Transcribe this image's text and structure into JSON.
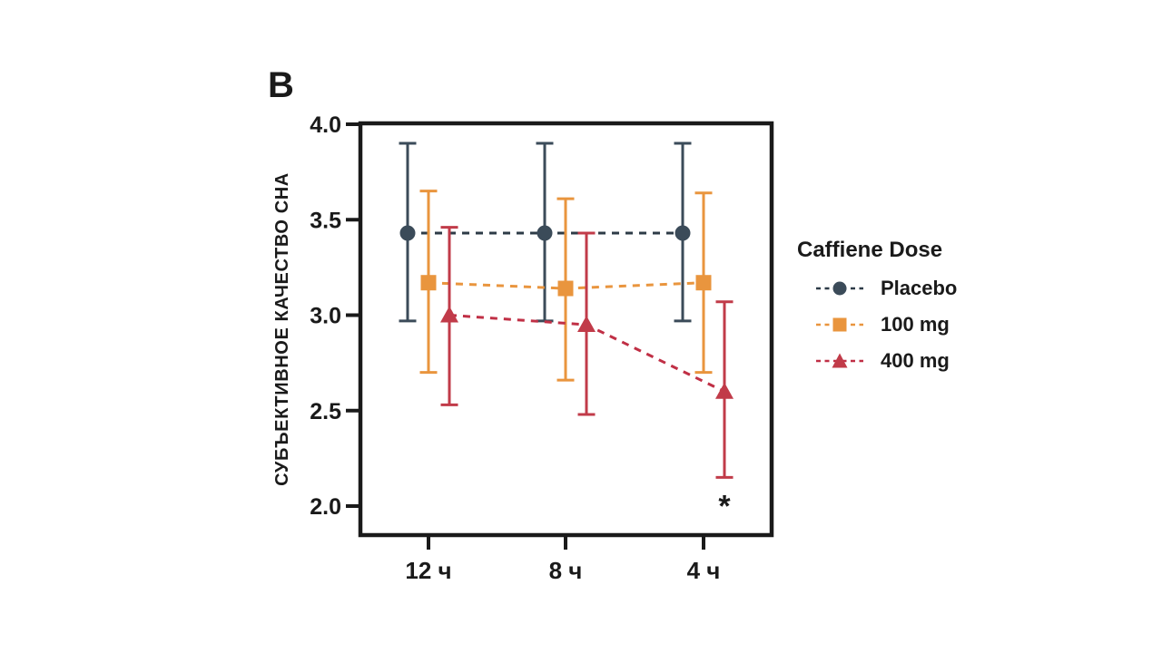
{
  "panel_label": "B",
  "colors": {
    "axis": "#1a1a1a",
    "background": "#ffffff"
  },
  "chart_data": {
    "type": "line",
    "title": "",
    "xlabel": "",
    "ylabel": "СУБЪЕКТИВНОЕ КАЧЕСТВО СНА",
    "categories": [
      "12 ч",
      "8 ч",
      "4 ч"
    ],
    "yticks": [
      4.0,
      3.5,
      3.0,
      2.5,
      2.0
    ],
    "ylim": [
      1.85,
      4.0
    ],
    "grid": false,
    "legend": {
      "title": "Caffiene Dose",
      "position": "right"
    },
    "series": [
      {
        "name": "Placebo",
        "marker": "circle",
        "color": "#3b4b59",
        "line_color": "#2d3b47",
        "values": [
          3.43,
          3.43,
          3.43
        ],
        "err_high": [
          3.9,
          3.9,
          3.9
        ],
        "err_low": [
          2.97,
          2.97,
          2.97
        ]
      },
      {
        "name": "100 mg",
        "marker": "square",
        "color": "#e9953e",
        "line_color": "#e9953e",
        "values": [
          3.17,
          3.14,
          3.17
        ],
        "err_high": [
          3.65,
          3.61,
          3.64
        ],
        "err_low": [
          2.7,
          2.66,
          2.7
        ]
      },
      {
        "name": "400 mg",
        "marker": "triangle",
        "color": "#c13b49",
        "line_color": "#c02f45",
        "values": [
          3.0,
          2.95,
          2.6
        ],
        "err_high": [
          3.46,
          3.43,
          3.07
        ],
        "err_low": [
          2.53,
          2.48,
          2.15
        ]
      }
    ],
    "annotations": [
      {
        "text": "*",
        "category_index": 2,
        "series_index": 2,
        "value": 2.03
      }
    ]
  }
}
